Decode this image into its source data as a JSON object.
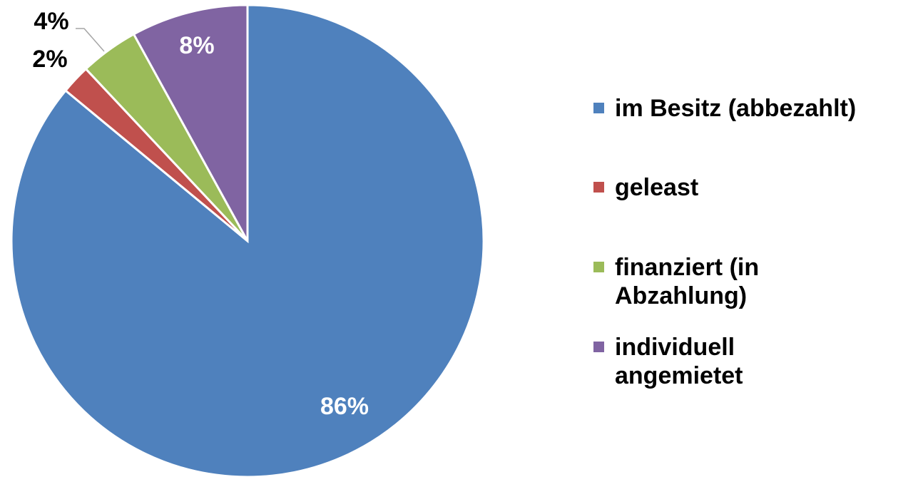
{
  "chart_data": {
    "type": "pie",
    "categories": [
      "im Besitz (abbezahlt)",
      "geleast",
      "finanziert (in Abzahlung)",
      "individuell angemietet"
    ],
    "values": [
      86,
      2,
      4,
      8
    ],
    "value_labels": [
      "86%",
      "2%",
      "4%",
      "8%"
    ],
    "colors": [
      "#4f81bd",
      "#c0504d",
      "#9bbb59",
      "#8064a2"
    ],
    "legend": "right"
  }
}
